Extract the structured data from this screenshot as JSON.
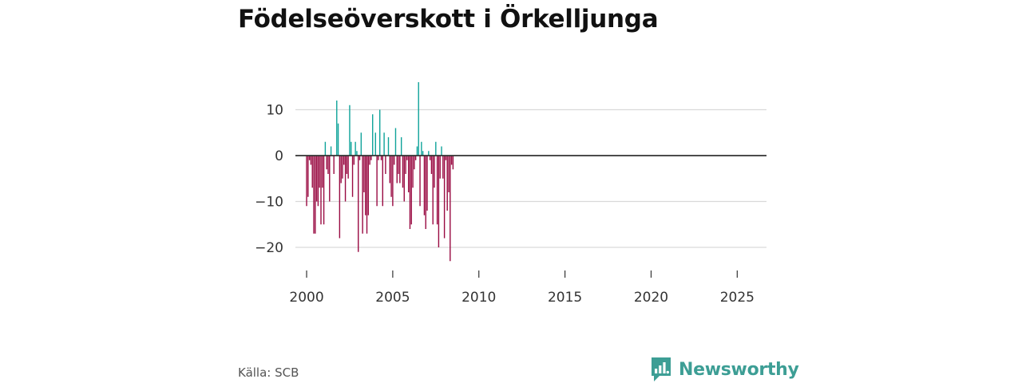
{
  "chart_data": {
    "type": "bar",
    "title": "Födelseöverskott i Örkelljunga",
    "xlabel": "",
    "ylabel": "",
    "xlim": [
      1999.35,
      2026.7
    ],
    "ylim": [
      -23,
      16
    ],
    "y_ticks": [
      10,
      0,
      -10,
      -20
    ],
    "y_tick_labels": [
      "10",
      "0",
      "−10",
      "−20"
    ],
    "x_ticks": [
      2000,
      2005,
      2010,
      2015,
      2020,
      2025
    ],
    "x_tick_labels": [
      "2000",
      "2005",
      "2010",
      "2015",
      "2020",
      "2025"
    ],
    "grid": true,
    "positive_color": "#0fa39a",
    "negative_color": "#990a42",
    "start_year": 2000,
    "period_per_year": 12,
    "values": [
      -11,
      -9,
      -1,
      -2,
      -7,
      -17,
      -17,
      -10,
      -11,
      -7,
      -15,
      -7,
      -15,
      3,
      -3,
      -4,
      -10,
      2,
      0,
      -4,
      0,
      12,
      7,
      -18,
      -6,
      -5,
      -2,
      -10,
      -4,
      -5,
      11,
      3,
      -9,
      -2,
      3,
      1,
      -21,
      -1,
      5,
      -17,
      -8,
      -13,
      -17,
      -13,
      -2,
      -1,
      9,
      0,
      5,
      -11,
      -1,
      10,
      -1,
      -11,
      5,
      -4,
      0,
      4,
      -6,
      -9,
      -11,
      -2,
      6,
      -6,
      -4,
      -6,
      4,
      -7,
      -10,
      -4,
      -1,
      -8,
      -16,
      -15,
      -7,
      -3,
      -1,
      2,
      16,
      -11,
      3,
      1,
      -13,
      -16,
      -12,
      1,
      -1,
      -4,
      -15,
      -7,
      3,
      -15,
      -20,
      -5,
      2,
      -5,
      -18,
      -1,
      -12,
      -8,
      -23,
      -2,
      -3
    ]
  },
  "source": "Källa: SCB",
  "brand": {
    "name": "Newsworthy",
    "color": "#3d9e95",
    "icon": "newsworthy-logo-icon"
  }
}
